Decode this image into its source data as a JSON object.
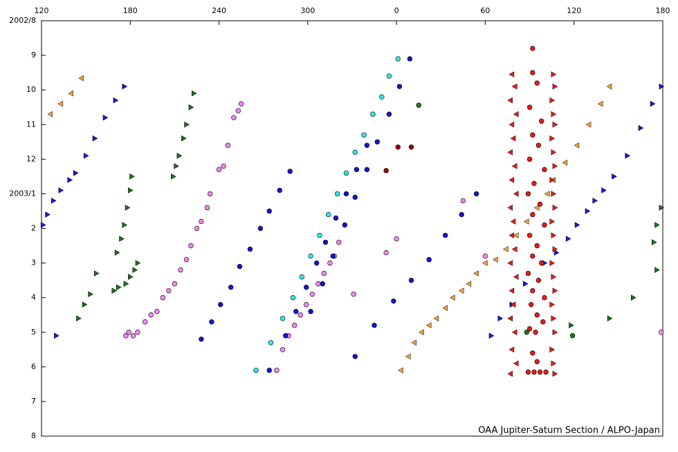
{
  "chart_data": {
    "type": "scatter",
    "credit": "OAA Jupiter-Saturn Section / ALPO-Japan",
    "xlim": [
      120,
      540
    ],
    "xticks": [
      120,
      180,
      240,
      300,
      {
        "value": 360,
        "label": "0"
      },
      {
        "value": 420,
        "label": "60"
      },
      {
        "value": 480,
        "label": "120"
      },
      {
        "value": 540,
        "label": "180"
      }
    ],
    "ylim": [
      12,
      0
    ],
    "yticks": [
      {
        "value": 0,
        "label": "2002/8"
      },
      {
        "value": 1,
        "label": "9"
      },
      {
        "value": 2,
        "label": "10"
      },
      {
        "value": 3,
        "label": "11"
      },
      {
        "value": 4,
        "label": "12"
      },
      {
        "value": 5,
        "label": "2003/1"
      },
      {
        "value": 6,
        "label": "2"
      },
      {
        "value": 7,
        "label": "3"
      },
      {
        "value": 8,
        "label": "4"
      },
      {
        "value": 9,
        "label": "5"
      },
      {
        "value": 10,
        "label": "6"
      },
      {
        "value": 11,
        "label": "7"
      },
      {
        "value": 12,
        "label": "8"
      }
    ],
    "series": [
      {
        "color": "#f0a040",
        "marker": "triangle-left",
        "x": [
          147,
          140,
          133,
          126,
          504,
          498,
          490,
          482,
          474,
          466,
          462,
          455,
          448,
          441,
          434,
          427,
          420,
          414,
          409,
          404,
          398,
          393,
          387,
          382,
          377,
          372,
          368,
          363
        ],
        "values": [
          1.66,
          2.1,
          2.4,
          2.7,
          1.9,
          2.4,
          3.0,
          3.6,
          4.1,
          4.6,
          5.0,
          5.4,
          5.8,
          6.2,
          6.6,
          6.9,
          7.0,
          7.3,
          7.6,
          7.8,
          8.0,
          8.3,
          8.6,
          8.8,
          9.0,
          9.3,
          9.7,
          10.1
        ]
      },
      {
        "color": "#1a1acc",
        "marker": "triangle-right",
        "x": [
          539,
          533,
          525,
          516,
          507,
          500,
          494,
          489,
          482,
          476,
          468,
          460,
          447,
          438,
          430,
          424,
          176,
          170,
          163,
          156,
          150,
          143,
          139,
          133,
          128,
          124,
          121,
          130
        ],
        "values": [
          1.9,
          2.4,
          3.1,
          3.9,
          4.5,
          4.9,
          5.2,
          5.5,
          5.9,
          6.3,
          6.7,
          7.0,
          7.6,
          8.2,
          8.6,
          9.1,
          1.9,
          2.3,
          2.8,
          3.4,
          3.9,
          4.4,
          4.6,
          4.9,
          5.2,
          5.6,
          5.9,
          9.1
        ]
      },
      {
        "color": "#1e6e1e",
        "marker": "triangle-right",
        "x": [
          223,
          221,
          218,
          216,
          213,
          211,
          209,
          181,
          180,
          178,
          176,
          174,
          171,
          185,
          183,
          180,
          177,
          172,
          169,
          157,
          153,
          149,
          145,
          539,
          536,
          534,
          536,
          520,
          504,
          478
        ],
        "values": [
          2.1,
          2.5,
          3.0,
          3.4,
          3.9,
          4.2,
          4.5,
          4.5,
          4.9,
          5.4,
          5.9,
          6.3,
          6.7,
          7.0,
          7.2,
          7.4,
          7.6,
          7.7,
          7.8,
          7.3,
          7.9,
          8.2,
          8.6,
          5.4,
          5.9,
          6.4,
          7.2,
          8.0,
          8.6,
          8.8
        ]
      },
      {
        "color": "#ee88ee",
        "marker": "circle",
        "x": [
          255,
          253,
          250,
          246,
          243,
          240,
          234,
          232,
          228,
          225,
          221,
          218,
          214,
          210,
          206,
          202,
          198,
          194,
          190,
          185,
          182,
          179,
          177,
          321,
          318,
          315,
          311,
          307,
          303,
          299,
          295,
          291,
          287,
          283,
          279,
          360,
          353,
          331,
          405,
          420,
          539
        ],
        "values": [
          2.4,
          2.6,
          2.8,
          3.6,
          4.2,
          4.3,
          5.0,
          5.4,
          5.8,
          6.0,
          6.5,
          6.9,
          7.2,
          7.6,
          7.8,
          8.0,
          8.4,
          8.5,
          8.7,
          9.0,
          9.1,
          9.0,
          9.1,
          6.4,
          6.8,
          7.0,
          7.3,
          7.6,
          7.9,
          8.2,
          8.5,
          8.8,
          9.1,
          9.5,
          10.1,
          6.3,
          6.7,
          7.9,
          5.2,
          6.8,
          9.0
        ]
      },
      {
        "color": "#1414d0",
        "marker": "circle",
        "x": [
          288,
          281,
          274,
          268,
          261,
          254,
          248,
          241,
          235,
          228,
          369,
          362,
          355,
          347,
          340,
          332,
          325,
          317,
          310,
          302,
          340,
          333,
          326,
          319,
          312,
          306,
          299,
          292,
          285,
          274,
          414,
          404,
          393,
          382,
          370,
          358,
          345,
          332
        ],
        "values": [
          4.35,
          4.9,
          5.5,
          6.0,
          6.6,
          7.1,
          7.7,
          8.2,
          8.7,
          9.2,
          1.1,
          1.9,
          2.7,
          3.5,
          4.3,
          5.1,
          5.9,
          6.8,
          7.6,
          8.4,
          3.6,
          4.3,
          5.0,
          5.7,
          6.4,
          7.0,
          7.7,
          8.4,
          9.1,
          10.1,
          5.0,
          5.6,
          6.2,
          6.9,
          7.5,
          8.1,
          8.8,
          9.7
        ]
      },
      {
        "color": "#33e6e6",
        "marker": "circle",
        "x": [
          361,
          355,
          350,
          344,
          338,
          332,
          326,
          320,
          314,
          308,
          302,
          296,
          290,
          283,
          275,
          265
        ],
        "values": [
          1.1,
          1.6,
          2.2,
          2.7,
          3.3,
          3.8,
          4.4,
          5.0,
          5.6,
          6.2,
          6.8,
          7.4,
          8.0,
          8.6,
          9.3,
          10.1
        ]
      },
      {
        "color": "#e41c1c",
        "marker": "triangle-left",
        "x": [
          438,
          440,
          437,
          441,
          438,
          439,
          437,
          440,
          438,
          441,
          437,
          439,
          438,
          440,
          437,
          441,
          438,
          439,
          437,
          440,
          438,
          441,
          437
        ],
        "values": [
          1.55,
          1.9,
          2.3,
          2.7,
          3.0,
          3.4,
          3.8,
          4.2,
          4.6,
          5.0,
          5.4,
          5.8,
          6.2,
          6.6,
          7.0,
          7.4,
          7.8,
          8.2,
          8.6,
          9.0,
          9.5,
          9.9,
          10.2
        ]
      },
      {
        "color": "#e41c1c",
        "marker": "triangle-right",
        "x": [
          466,
          467,
          465,
          466,
          467,
          465,
          466,
          467,
          465,
          466,
          467,
          465,
          466,
          467,
          465,
          466,
          467,
          465,
          466,
          467,
          465,
          466,
          467
        ],
        "values": [
          1.55,
          1.9,
          2.3,
          2.7,
          3.0,
          3.4,
          3.8,
          4.2,
          4.6,
          5.0,
          5.4,
          5.8,
          6.2,
          6.6,
          7.0,
          7.4,
          7.8,
          8.2,
          8.6,
          9.0,
          9.5,
          9.9,
          10.2
        ]
      },
      {
        "color": "#e41c1c",
        "marker": "circle",
        "x": [
          452,
          452,
          455,
          450,
          458,
          452,
          456,
          450,
          460,
          453,
          449,
          457,
          452,
          460,
          450,
          455,
          452,
          458,
          449,
          456,
          452,
          460,
          451,
          455,
          459,
          450,
          454,
          452,
          449,
          453,
          457,
          461,
          455
        ],
        "values": [
          0.8,
          1.5,
          1.8,
          2.5,
          2.9,
          3.3,
          3.6,
          4.0,
          4.3,
          4.7,
          5.0,
          5.3,
          5.6,
          5.9,
          6.2,
          6.5,
          6.8,
          7.0,
          7.3,
          7.5,
          7.8,
          8.0,
          8.2,
          8.5,
          8.7,
          8.9,
          9.0,
          9.6,
          10.15,
          10.15,
          10.15,
          10.15,
          9.85
        ]
      },
      {
        "color": "#a00000",
        "marker": "circle",
        "x": [
          361,
          370,
          353
        ],
        "values": [
          3.65,
          3.65,
          4.33
        ]
      },
      {
        "color": "#1e7a1e",
        "marker": "circle",
        "x": [
          375,
          448,
          479
        ],
        "values": [
          2.44,
          9.0,
          9.1
        ]
      }
    ]
  }
}
